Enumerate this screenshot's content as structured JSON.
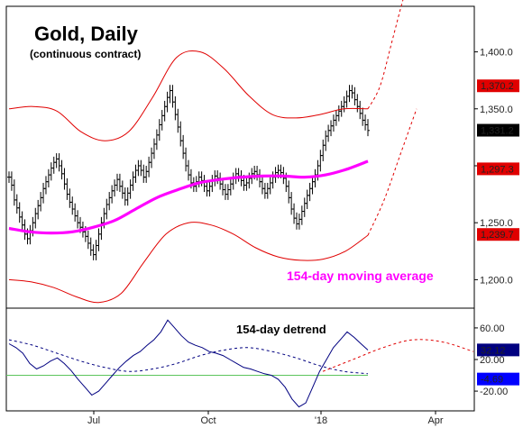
{
  "chart_data": {
    "type": "line",
    "title": "Gold, Daily",
    "subtitle": "(continuous contract)",
    "x_tick_labels": [
      "Jul",
      "Oct",
      "'18",
      "Apr"
    ],
    "price_panel": {
      "y_ticks": [
        1200,
        1250,
        1300,
        1350,
        1400
      ],
      "y_tick_labels": [
        "1,200.0",
        "1,250.0",
        "1,300.0",
        "1,350.0",
        "1,400.0"
      ],
      "ylim": [
        1175,
        1440
      ],
      "series": [
        {
          "name": "price bars (OHLC)",
          "color": "#000000",
          "close": [
            1290,
            1283,
            1270,
            1263,
            1255,
            1248,
            1240,
            1236,
            1243,
            1250,
            1258,
            1265,
            1272,
            1280,
            1286,
            1292,
            1298,
            1303,
            1306,
            1300,
            1293,
            1284,
            1275,
            1268,
            1262,
            1256,
            1250,
            1246,
            1242,
            1238,
            1232,
            1226,
            1222,
            1230,
            1240,
            1250,
            1258,
            1266,
            1272,
            1278,
            1283,
            1288,
            1282,
            1276,
            1270,
            1276,
            1283,
            1290,
            1296,
            1300,
            1296,
            1290,
            1295,
            1303,
            1311,
            1319,
            1327,
            1336,
            1344,
            1352,
            1360,
            1366,
            1356,
            1345,
            1334,
            1322,
            1311,
            1300,
            1292,
            1285,
            1282,
            1286,
            1290,
            1287,
            1282,
            1278,
            1282,
            1287,
            1291,
            1289,
            1284,
            1279,
            1275,
            1279,
            1284,
            1289,
            1293,
            1291,
            1287,
            1283,
            1285,
            1289,
            1293,
            1295,
            1292,
            1286,
            1280,
            1276,
            1280,
            1285,
            1290,
            1294,
            1296,
            1294,
            1289,
            1282,
            1272,
            1262,
            1254,
            1249,
            1253,
            1260,
            1267,
            1274,
            1280,
            1286,
            1292,
            1300,
            1309,
            1318,
            1326,
            1331,
            1335,
            1340,
            1344,
            1348,
            1352,
            1356,
            1361,
            1366,
            1364,
            1358,
            1352,
            1346,
            1340,
            1336,
            1331
          ]
        },
        {
          "name": "154-day moving average",
          "color": "#ff00ff",
          "values": [
            1245,
            1242,
            1241,
            1242,
            1246,
            1252,
            1262,
            1272,
            1279,
            1285,
            1288,
            1290,
            1291,
            1291,
            1290,
            1292,
            1297,
            1304
          ]
        },
        {
          "name": "upper band",
          "color": "#e00000",
          "values": [
            1350,
            1352,
            1348,
            1330,
            1322,
            1330,
            1360,
            1395,
            1400,
            1385,
            1362,
            1345,
            1342,
            1345,
            1350,
            1350
          ]
        },
        {
          "name": "lower band",
          "color": "#e00000",
          "values": [
            1200,
            1198,
            1193,
            1185,
            1180,
            1188,
            1215,
            1240,
            1250,
            1248,
            1240,
            1228,
            1220,
            1217,
            1218,
            1225,
            1239
          ]
        },
        {
          "name": "upper band projection",
          "color": "#e00000",
          "style": "dashed",
          "values": [
            1350,
            1370,
            1410,
            1450,
            1480
          ]
        },
        {
          "name": "lower band projection",
          "color": "#e00000",
          "style": "dashed",
          "values": [
            1239,
            1270,
            1310,
            1350
          ]
        }
      ]
    },
    "oscillator_panel": {
      "y_ticks": [
        -20,
        20,
        60
      ],
      "y_tick_labels": [
        "-20.00",
        "20.00",
        "60.00"
      ],
      "ylim": [
        -45,
        85
      ],
      "zero_line": 0,
      "series": [
        {
          "name": "154-day detrend",
          "color": "#000080",
          "values": [
            40,
            35,
            28,
            15,
            8,
            12,
            18,
            22,
            15,
            6,
            -5,
            -15,
            -25,
            -20,
            -10,
            0,
            10,
            18,
            25,
            30,
            38,
            45,
            55,
            70,
            60,
            50,
            42,
            38,
            35,
            30,
            28,
            25,
            20,
            15,
            10,
            8,
            5,
            2,
            0,
            -5,
            -15,
            -30,
            -40,
            -35,
            -15,
            5,
            20,
            35,
            45,
            55,
            48,
            40,
            32
          ]
        },
        {
          "name": "detrend cycle",
          "color": "#000080",
          "style": "dashed",
          "values": [
            45,
            38,
            28,
            18,
            10,
            5,
            8,
            15,
            25,
            32,
            35,
            30,
            22,
            12,
            5,
            2
          ]
        },
        {
          "name": "detrend cycle projection",
          "color": "#e00000",
          "style": "dashed",
          "values": [
            5,
            20,
            35,
            45,
            42,
            30
          ]
        }
      ]
    },
    "value_tags": [
      {
        "label": "1,370.2",
        "value": 1370.2,
        "panel": "price",
        "bg": "#e00000",
        "fg": "#ffffff"
      },
      {
        "label": "1,331.2",
        "value": 1331.2,
        "panel": "price",
        "bg": "#000000",
        "fg": "#ffffff"
      },
      {
        "label": "1,297.3",
        "value": 1297.3,
        "panel": "price",
        "bg": "#e00000",
        "fg": "#ffffff"
      },
      {
        "label": "1,239.7",
        "value": 1239.7,
        "panel": "price",
        "bg": "#e00000",
        "fg": "#ffffff"
      },
      {
        "label": "32.12",
        "value": 32.12,
        "panel": "oscillator",
        "bg": "#000080",
        "fg": "#ffffff"
      },
      {
        "label": "-4.69",
        "value": -4.69,
        "panel": "oscillator",
        "bg": "#0000ff",
        "fg": "#ffffff"
      }
    ],
    "annotations": [
      {
        "text": "154-day moving average",
        "color": "#ff00ff"
      },
      {
        "text": "154-day detrend",
        "color": "#000000"
      }
    ],
    "grid": false
  }
}
